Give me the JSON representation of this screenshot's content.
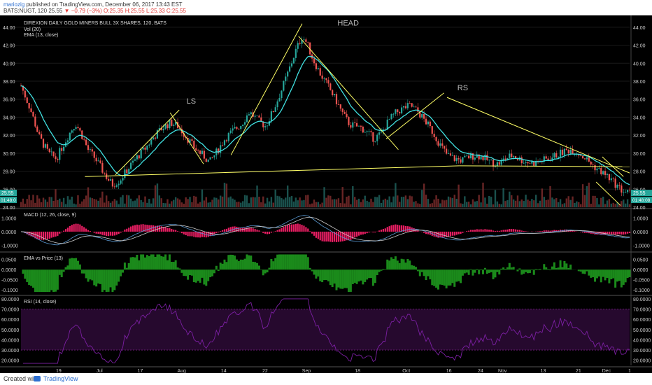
{
  "header": {
    "author": "mariozig",
    "published_text": "published on TradingView.com, December 06, 2017 13:43 EST",
    "symbol_line": "BATS:NUGT, 120",
    "last": "25.55",
    "change": "▼ −0.79 (−3%)",
    "o": "O:25.35",
    "h": "H:25.55",
    "l": "L:25.33",
    "c": "C:25.55"
  },
  "footer": {
    "created_with": "Created with",
    "brand": "TradingView"
  },
  "colors": {
    "background": "#000000",
    "price_up": "#26a69a",
    "price_down": "#ef5350",
    "ema": "#40e0e0",
    "trend": "#ffff66",
    "macd_hist": "#e91e63",
    "ema_vs_price": "#1b8a1b",
    "rsi": "#7b1fa2"
  },
  "chart_data": [
    {
      "type": "candlestick",
      "title": "DIREXION DAILY GOLD MINERS BULL 3X SHARES, 120, BATS",
      "indicators": [
        "Vol (20)",
        "EMA (13, close)"
      ],
      "ylim": [
        24.0,
        45.0
      ],
      "yticks": [
        "44.00",
        "42.00",
        "40.00",
        "38.00",
        "36.00",
        "34.00",
        "32.00",
        "30.00",
        "28.00",
        "26.00",
        "24.00"
      ],
      "last_price_label": "25.55",
      "time_label": "01:48:08",
      "left_labels": [
        "25.55",
        "01:48:0"
      ],
      "xticks": [
        {
          "label": "19",
          "t": 0.062
        },
        {
          "label": "Jul",
          "t": 0.129
        },
        {
          "label": "17",
          "t": 0.196
        },
        {
          "label": "Aug",
          "t": 0.264
        },
        {
          "label": "14",
          "t": 0.333
        },
        {
          "label": "22",
          "t": 0.401
        },
        {
          "label": "Sep",
          "t": 0.469
        },
        {
          "label": "18",
          "t": 0.553
        },
        {
          "label": "Oct",
          "t": 0.633
        },
        {
          "label": "16",
          "t": 0.703
        },
        {
          "label": "24",
          "t": 0.755
        },
        {
          "label": "Nov",
          "t": 0.791
        },
        {
          "label": "13",
          "t": 0.858
        },
        {
          "label": "21",
          "t": 0.916
        },
        {
          "label": "Dec",
          "t": 0.962
        },
        {
          "label": "1",
          "t": 1.0
        }
      ],
      "price_path": [
        [
          0.0,
          37.5
        ],
        [
          0.015,
          35.0
        ],
        [
          0.03,
          31.8
        ],
        [
          0.045,
          30.0
        ],
        [
          0.058,
          29.4
        ],
        [
          0.07,
          31.0
        ],
        [
          0.082,
          32.5
        ],
        [
          0.09,
          33.3
        ],
        [
          0.1,
          32.0
        ],
        [
          0.11,
          30.4
        ],
        [
          0.122,
          29.4
        ],
        [
          0.132,
          28.3
        ],
        [
          0.142,
          27.2
        ],
        [
          0.15,
          26.5
        ],
        [
          0.162,
          27.0
        ],
        [
          0.175,
          28.2
        ],
        [
          0.19,
          29.5
        ],
        [
          0.205,
          30.6
        ],
        [
          0.218,
          31.8
        ],
        [
          0.232,
          32.8
        ],
        [
          0.246,
          33.4
        ],
        [
          0.258,
          33.0
        ],
        [
          0.272,
          31.8
        ],
        [
          0.286,
          30.5
        ],
        [
          0.3,
          29.7
        ],
        [
          0.31,
          29.0
        ],
        [
          0.322,
          30.2
        ],
        [
          0.335,
          31.6
        ],
        [
          0.35,
          32.6
        ],
        [
          0.362,
          33.2
        ],
        [
          0.375,
          34.6
        ],
        [
          0.39,
          33.6
        ],
        [
          0.402,
          33.0
        ],
        [
          0.415,
          34.8
        ],
        [
          0.428,
          37.0
        ],
        [
          0.44,
          39.2
        ],
        [
          0.452,
          41.5
        ],
        [
          0.462,
          43.0
        ],
        [
          0.47,
          42.2
        ],
        [
          0.48,
          40.4
        ],
        [
          0.492,
          38.8
        ],
        [
          0.505,
          37.4
        ],
        [
          0.518,
          35.8
        ],
        [
          0.53,
          34.2
        ],
        [
          0.54,
          33.2
        ],
        [
          0.55,
          33.0
        ],
        [
          0.56,
          32.8
        ],
        [
          0.57,
          32.2
        ],
        [
          0.58,
          31.6
        ],
        [
          0.592,
          32.2
        ],
        [
          0.604,
          33.6
        ],
        [
          0.616,
          34.5
        ],
        [
          0.628,
          35.0
        ],
        [
          0.64,
          35.3
        ],
        [
          0.652,
          34.6
        ],
        [
          0.664,
          33.6
        ],
        [
          0.676,
          32.4
        ],
        [
          0.688,
          31.0
        ],
        [
          0.7,
          29.8
        ],
        [
          0.712,
          29.4
        ],
        [
          0.724,
          29.2
        ],
        [
          0.736,
          29.6
        ],
        [
          0.748,
          29.8
        ],
        [
          0.76,
          29.5
        ],
        [
          0.772,
          29.0
        ],
        [
          0.784,
          28.8
        ],
        [
          0.796,
          29.4
        ],
        [
          0.808,
          29.8
        ],
        [
          0.82,
          29.3
        ],
        [
          0.832,
          29.0
        ],
        [
          0.844,
          28.9
        ],
        [
          0.856,
          29.2
        ],
        [
          0.868,
          29.4
        ],
        [
          0.88,
          29.8
        ],
        [
          0.892,
          30.2
        ],
        [
          0.904,
          30.4
        ],
        [
          0.916,
          30.0
        ],
        [
          0.928,
          29.4
        ],
        [
          0.94,
          28.6
        ],
        [
          0.952,
          28.0
        ],
        [
          0.964,
          27.4
        ],
        [
          0.976,
          26.6
        ],
        [
          0.988,
          25.8
        ],
        [
          1.0,
          25.55
        ]
      ],
      "annotations": [
        {
          "text": "LS",
          "t": 0.272,
          "y": 35.5
        },
        {
          "text": "HEAD",
          "t": 0.52,
          "y": 44.2
        },
        {
          "text": "RS",
          "t": 0.717,
          "y": 37.0
        }
      ]
    },
    {
      "type": "line",
      "title": "MACD (12, 26, close, 9)",
      "ylim": [
        -1.4,
        1.6
      ],
      "yticks": [
        "1.0000",
        "0.0000",
        "-1.0000"
      ]
    },
    {
      "type": "area",
      "title": "EMA vs Price (13)",
      "ylim": [
        -0.12,
        0.08
      ],
      "yticks": [
        "0.0500",
        "0.0000",
        "-0.0500",
        "-0.1000"
      ]
    },
    {
      "type": "line",
      "title": "RSI (14, close)",
      "ylim": [
        15,
        82
      ],
      "yticks": [
        "80.0000",
        "70.0000",
        "60.0000",
        "50.0000",
        "40.0000",
        "30.0000",
        "20.0000"
      ],
      "bands": [
        70,
        30
      ]
    }
  ]
}
